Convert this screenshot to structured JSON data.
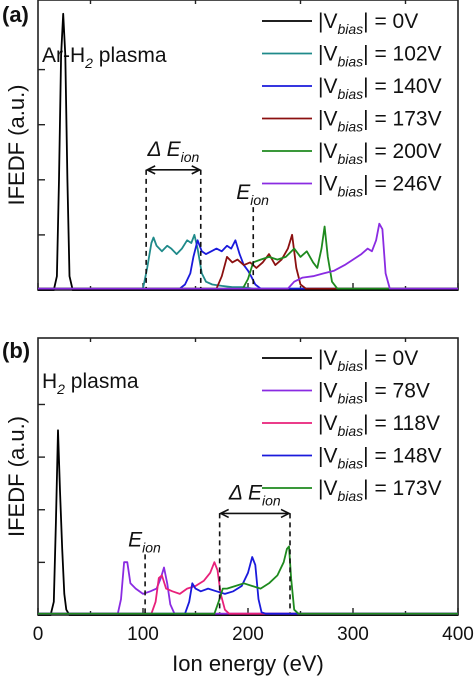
{
  "chart_data": [
    {
      "type": "line",
      "panel_label": "(a)",
      "annotation": "Ar-H",
      "annotation_sub": "2",
      "annotation_tail": " plasma",
      "ylabel": "IFEDF (a.u.)",
      "xlabel": "",
      "xlim": [
        0,
        400
      ],
      "ylim": [
        0,
        1.05
      ],
      "x_ticks": [],
      "legend_position": "top-right",
      "e_ion_label": "E",
      "e_ion_sub": "ion",
      "delta_e_label": "Δ E",
      "delta_e_sub": "ion",
      "e_ion_marker_x": 205,
      "e_ion_marker_top": 0.3,
      "delta_e_range": [
        103,
        155
      ],
      "delta_e_arrow_y": 0.435,
      "series": [
        {
          "name": "|V",
          "sub": "bias",
          "rest": "| = 0V",
          "color": "#000000",
          "x": [
            0,
            15,
            18,
            20,
            22,
            24,
            26,
            28,
            30,
            33,
            400
          ],
          "y": [
            0,
            0,
            0.05,
            0.4,
            0.85,
            1.0,
            0.85,
            0.4,
            0.05,
            0,
            0
          ]
        },
        {
          "name": "|V",
          "sub": "bias",
          "rest": "| = 102V",
          "color": "#1f8a8a",
          "x": [
            0,
            100,
            104,
            108,
            110,
            113,
            118,
            123,
            127,
            132,
            137,
            142,
            146,
            149,
            152,
            156,
            160,
            166,
            175,
            185,
            195,
            205,
            215,
            400
          ],
          "y": [
            0.005,
            0.005,
            0.08,
            0.17,
            0.19,
            0.16,
            0.14,
            0.16,
            0.15,
            0.13,
            0.15,
            0.18,
            0.17,
            0.2,
            0.15,
            0.06,
            0.03,
            0.02,
            0.015,
            0.01,
            0.01,
            0.005,
            0.005,
            0.005
          ]
        },
        {
          "name": "|V",
          "sub": "bias",
          "rest": "| = 140V",
          "color": "#1a1adc",
          "x": [
            0,
            135,
            140,
            145,
            148,
            152,
            156,
            160,
            165,
            170,
            175,
            180,
            184,
            188,
            192,
            196,
            200,
            203,
            207,
            212,
            400
          ],
          "y": [
            0.005,
            0.005,
            0.02,
            0.06,
            0.12,
            0.18,
            0.14,
            0.13,
            0.14,
            0.15,
            0.14,
            0.16,
            0.15,
            0.18,
            0.13,
            0.09,
            0.07,
            0.05,
            0.02,
            0.005,
            0.005
          ]
        },
        {
          "name": "|V",
          "sub": "bias",
          "rest": "| = 173V",
          "color": "#8b1010",
          "x": [
            0,
            170,
            175,
            180,
            185,
            190,
            196,
            202,
            208,
            214,
            220,
            226,
            232,
            238,
            242,
            246,
            250,
            255,
            400
          ],
          "y": [
            0.005,
            0.005,
            0.05,
            0.12,
            0.1,
            0.11,
            0.09,
            0.1,
            0.08,
            0.1,
            0.13,
            0.09,
            0.11,
            0.15,
            0.2,
            0.08,
            0.02,
            0.005,
            0.005
          ]
        },
        {
          "name": "|V",
          "sub": "bias",
          "rest": "| = 200V",
          "color": "#1e8a1e",
          "x": [
            0,
            195,
            200,
            205,
            212,
            220,
            228,
            236,
            244,
            250,
            256,
            262,
            266,
            270,
            273,
            276,
            280,
            285,
            400
          ],
          "y": [
            0.005,
            0.005,
            0.04,
            0.1,
            0.11,
            0.12,
            0.11,
            0.12,
            0.15,
            0.12,
            0.14,
            0.1,
            0.08,
            0.15,
            0.23,
            0.12,
            0.03,
            0.005,
            0.005
          ]
        },
        {
          "name": "|V",
          "sub": "bias",
          "rest": "| = 246V",
          "color": "#8a2be2",
          "x": [
            0,
            238,
            244,
            252,
            262,
            272,
            282,
            292,
            300,
            308,
            314,
            318,
            322,
            325,
            328,
            331,
            335,
            400
          ],
          "y": [
            0.005,
            0.005,
            0.03,
            0.045,
            0.05,
            0.06,
            0.07,
            0.09,
            0.11,
            0.13,
            0.15,
            0.14,
            0.18,
            0.24,
            0.22,
            0.06,
            0.005,
            0.005
          ]
        }
      ]
    },
    {
      "type": "line",
      "panel_label": "(b)",
      "annotation": "H",
      "annotation_sub": "2",
      "annotation_tail": " plasma",
      "ylabel": "IFEDF (a.u.)",
      "xlabel": "Ion energy (eV)",
      "xlim": [
        0,
        400
      ],
      "ylim": [
        0,
        1.05
      ],
      "x_ticks": [
        "0",
        "100",
        "200",
        "300",
        "400"
      ],
      "legend_position": "top-right",
      "e_ion_label": "E",
      "e_ion_sub": "ion",
      "delta_e_label": "Δ E",
      "delta_e_sub": "ion",
      "e_ion_marker_x": 102,
      "e_ion_marker_top": 0.23,
      "delta_e_range": [
        173,
        240
      ],
      "delta_e_arrow_y": 0.385,
      "series": [
        {
          "name": "|V",
          "sub": "bias",
          "rest": "| = 0V",
          "color": "#000000",
          "x": [
            0,
            12,
            15,
            17,
            19,
            21,
            23,
            25,
            27,
            30,
            400
          ],
          "y": [
            0,
            0,
            0.05,
            0.35,
            0.7,
            0.47,
            0.25,
            0.08,
            0.02,
            0,
            0
          ]
        },
        {
          "name": "|V",
          "sub": "bias",
          "rest": "| = 78V",
          "color": "#8a2be2",
          "x": [
            0,
            76,
            79,
            82,
            85,
            88,
            93,
            100,
            107,
            113,
            117,
            120,
            123,
            126,
            130,
            400
          ],
          "y": [
            0.005,
            0.005,
            0.06,
            0.2,
            0.2,
            0.12,
            0.1,
            0.08,
            0.09,
            0.1,
            0.14,
            0.18,
            0.12,
            0.04,
            0.005,
            0.005
          ]
        },
        {
          "name": "|V",
          "sub": "bias",
          "rest": "| = 118V",
          "color": "#e8207a",
          "x": [
            0,
            108,
            112,
            115,
            118,
            122,
            128,
            135,
            142,
            150,
            158,
            164,
            168,
            171,
            174,
            178,
            182,
            400
          ],
          "y": [
            0.005,
            0.005,
            0.05,
            0.14,
            0.15,
            0.1,
            0.09,
            0.08,
            0.1,
            0.11,
            0.13,
            0.16,
            0.2,
            0.17,
            0.08,
            0.02,
            0.005,
            0.005
          ]
        },
        {
          "name": "|V",
          "sub": "bias",
          "rest": "| = 148V",
          "color": "#1a1adc",
          "x": [
            0,
            140,
            144,
            147,
            150,
            155,
            162,
            170,
            178,
            186,
            194,
            200,
            204,
            207,
            210,
            213,
            217,
            400
          ],
          "y": [
            0.005,
            0.005,
            0.05,
            0.12,
            0.1,
            0.09,
            0.1,
            0.09,
            0.08,
            0.09,
            0.11,
            0.16,
            0.22,
            0.19,
            0.06,
            0.01,
            0.005,
            0.005
          ]
        },
        {
          "name": "|V",
          "sub": "bias",
          "rest": "| = 173V",
          "color": "#1e8a1e",
          "x": [
            0,
            168,
            172,
            176,
            180,
            188,
            196,
            204,
            212,
            220,
            228,
            234,
            237,
            239,
            241,
            244,
            248,
            400
          ],
          "y": [
            0.005,
            0.005,
            0.05,
            0.1,
            0.1,
            0.11,
            0.12,
            0.11,
            0.1,
            0.12,
            0.15,
            0.2,
            0.25,
            0.26,
            0.14,
            0.02,
            0.005,
            0.005
          ]
        }
      ]
    }
  ]
}
